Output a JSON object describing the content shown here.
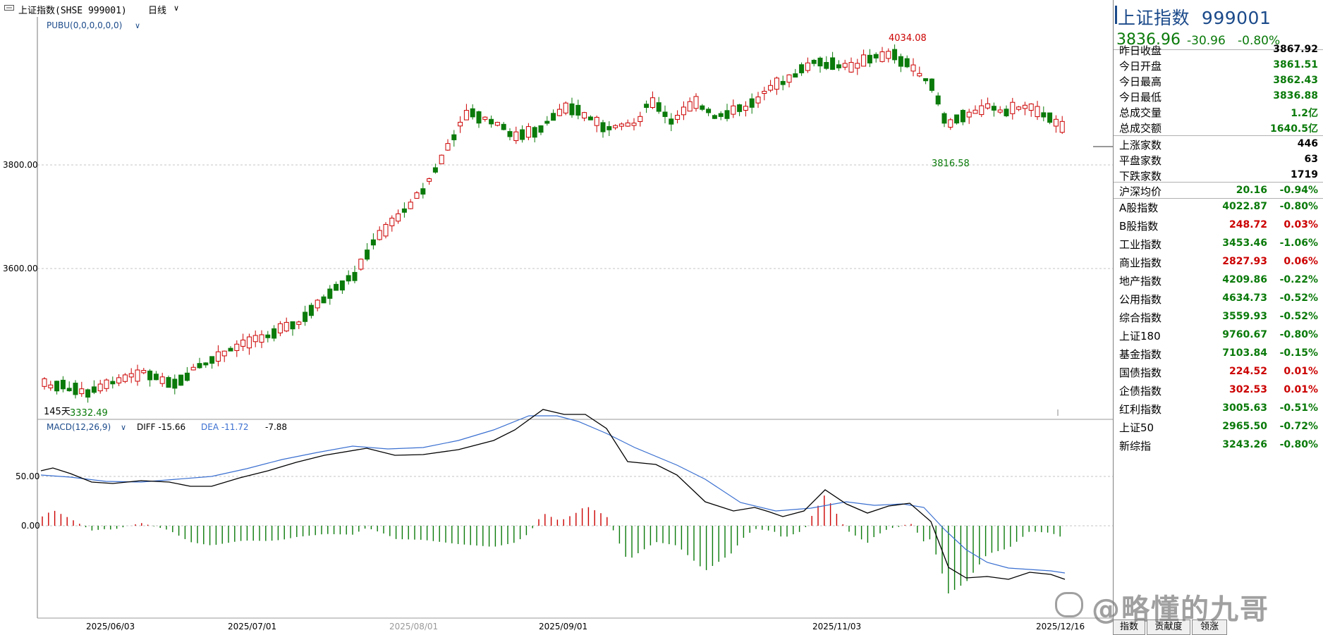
{
  "header": {
    "title": "上证指数(SHSE 999001)",
    "period": "日线"
  },
  "kline": {
    "indicator": "PUBU(0,0,0,0,0,0)",
    "y_ticks": [
      "3800.00",
      "3600.00"
    ],
    "high_label": "4034.08",
    "low_label": "3816.58",
    "start_label": "3332.49",
    "days_label": "145天"
  },
  "macd": {
    "indicator": "MACD(12,26,9)",
    "diff_label": "DIFF -15.66",
    "dea_label": "DEA -11.72",
    "macd_label": "-7.88",
    "y_ticks": [
      "50.00",
      "0.00"
    ]
  },
  "x_axis": {
    "dates": [
      "2025/06/03",
      "2025/07/01",
      "2025/08/01",
      "2025/09/01",
      "2025/11/03",
      "2025/12/16"
    ]
  },
  "quote": {
    "name": "上证指数",
    "code": "999001",
    "price": "3836.96",
    "change": "-30.96",
    "change_pct": "-0.80%",
    "stats": [
      {
        "label": "昨日收盘",
        "value": "3867.92",
        "color": "black"
      },
      {
        "label": "今日开盘",
        "value": "3861.51",
        "color": "green"
      },
      {
        "label": "今日最高",
        "value": "3862.43",
        "color": "green"
      },
      {
        "label": "今日最低",
        "value": "3836.88",
        "color": "green"
      },
      {
        "label": "总成交量",
        "value": "1.2亿",
        "color": "green"
      },
      {
        "label": "总成交额",
        "value": "1640.5亿",
        "color": "green"
      }
    ],
    "breadth": [
      {
        "label": "上涨家数",
        "value": "446",
        "color": "black"
      },
      {
        "label": "平盘家数",
        "value": "63",
        "color": "black"
      },
      {
        "label": "下跌家数",
        "value": "1719",
        "color": "black"
      }
    ],
    "avg": {
      "label": "沪深均价",
      "value": "20.16",
      "pct": "-0.94%"
    },
    "indices": [
      {
        "label": "A股指数",
        "value": "4022.87",
        "pct": "-0.80%",
        "color": "green"
      },
      {
        "label": "B股指数",
        "value": "248.72",
        "pct": "0.03%",
        "color": "red"
      },
      {
        "label": "工业指数",
        "value": "3453.46",
        "pct": "-1.06%",
        "color": "green"
      },
      {
        "label": "商业指数",
        "value": "2827.93",
        "pct": "0.06%",
        "color": "red"
      },
      {
        "label": "地产指数",
        "value": "4209.86",
        "pct": "-0.22%",
        "color": "green"
      },
      {
        "label": "公用指数",
        "value": "4634.73",
        "pct": "-0.52%",
        "color": "green"
      },
      {
        "label": "综合指数",
        "value": "3559.93",
        "pct": "-0.52%",
        "color": "green"
      },
      {
        "label": "上证180",
        "value": "9760.67",
        "pct": "-0.80%",
        "color": "green"
      },
      {
        "label": "基金指数",
        "value": "7103.84",
        "pct": "-0.15%",
        "color": "green"
      },
      {
        "label": "国债指数",
        "value": "224.52",
        "pct": "0.01%",
        "color": "red"
      },
      {
        "label": "企债指数",
        "value": "302.53",
        "pct": "0.01%",
        "color": "red"
      },
      {
        "label": "红利指数",
        "value": "3005.63",
        "pct": "-0.51%",
        "color": "green"
      },
      {
        "label": "上证50",
        "value": "2965.50",
        "pct": "-0.72%",
        "color": "green"
      },
      {
        "label": "新综指",
        "value": "3243.26",
        "pct": "-0.80%",
        "color": "green"
      }
    ]
  },
  "tabs": [
    "指数",
    "贡献度",
    "领涨"
  ],
  "watermark": "@略懂的九哥",
  "colors": {
    "up": "#cc0000",
    "down": "#0a7a0a",
    "diff": "#000000",
    "dea": "#3a6fd0",
    "title_blue": "#1b4a8a"
  }
}
